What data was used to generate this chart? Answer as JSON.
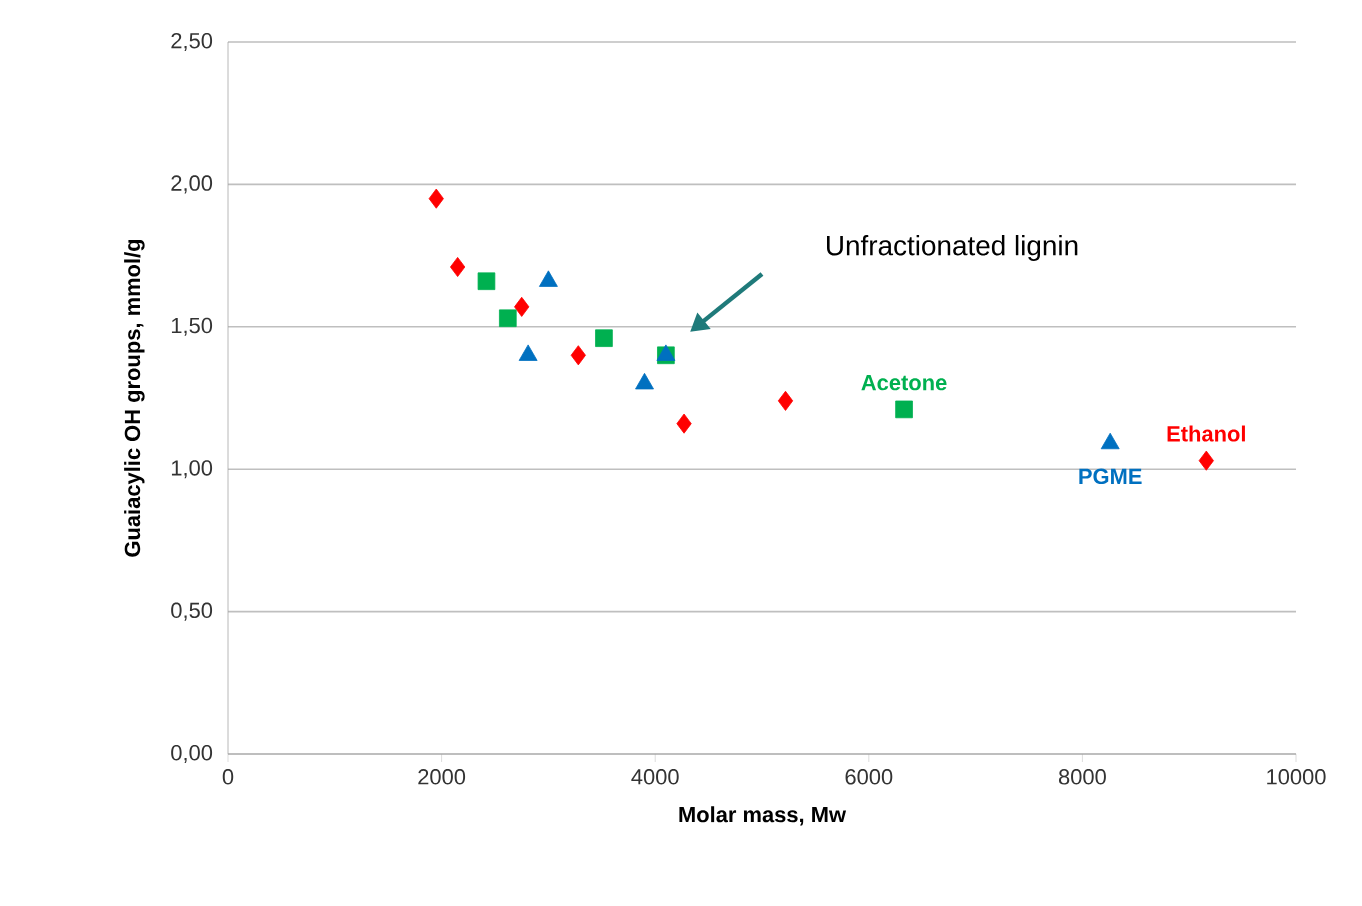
{
  "chart_data": {
    "type": "scatter",
    "xlabel": "Molar mass, Mw",
    "ylabel": "Guaiacylic OH groups, mmol/g",
    "xlim": [
      0,
      10000
    ],
    "ylim": [
      0,
      2.5
    ],
    "xticks": [
      0,
      2000,
      4000,
      6000,
      8000,
      10000
    ],
    "yticks": [
      {
        "value": 0,
        "label": "0,00"
      },
      {
        "value": 0.5,
        "label": "0,50"
      },
      {
        "value": 1,
        "label": "1,00"
      },
      {
        "value": 1.5,
        "label": "1,50"
      },
      {
        "value": 2,
        "label": "2,00"
      },
      {
        "value": 2.5,
        "label": "2,50"
      }
    ],
    "grid": "y",
    "legend": false,
    "annotations": [
      "Unfractionated lignin"
    ],
    "series": [
      {
        "name": "Ethanol",
        "color": "#ff0000",
        "marker": "diamond",
        "x": [
          1950,
          2150,
          2750,
          3280,
          4270,
          5220,
          9160
        ],
        "values": [
          1.95,
          1.71,
          1.57,
          1.4,
          1.16,
          1.24,
          1.03
        ]
      },
      {
        "name": "Acetone",
        "color": "#00b050",
        "marker": "square",
        "x": [
          2420,
          2620,
          3520,
          4100,
          6330
        ],
        "values": [
          1.66,
          1.53,
          1.46,
          1.4,
          1.21
        ]
      },
      {
        "name": "PGME",
        "color": "#0070c0",
        "marker": "triangle",
        "x": [
          2810,
          3000,
          3900,
          4100,
          8260
        ],
        "values": [
          1.4,
          1.66,
          1.3,
          1.4,
          1.09
        ]
      }
    ]
  }
}
